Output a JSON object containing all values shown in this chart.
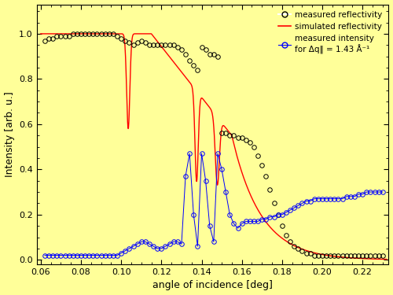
{
  "background_color": "#ffff99",
  "xlabel": "angle of incidence [deg]",
  "ylabel": "Intensity [arb. u.]",
  "xlim": [
    0.058,
    0.233
  ],
  "ylim": [
    -0.02,
    1.13
  ],
  "xticks": [
    0.06,
    0.08,
    0.1,
    0.12,
    0.14,
    0.16,
    0.18,
    0.2,
    0.22
  ],
  "yticks": [
    0.0,
    0.2,
    0.4,
    0.6,
    0.8,
    1.0
  ],
  "legend_labels": [
    "measured reflectivity",
    "simulated reflectivity",
    "measured intensity\nfor Δq‖ = 1.43 Å⁻¹"
  ],
  "meas_refl_color": "black",
  "sim_refl_color": "red",
  "meas_int_color": "blue",
  "x_mr": [
    0.062,
    0.064,
    0.066,
    0.068,
    0.07,
    0.072,
    0.074,
    0.076,
    0.078,
    0.08,
    0.082,
    0.084,
    0.086,
    0.088,
    0.09,
    0.092,
    0.094,
    0.096,
    0.098,
    0.1,
    0.102,
    0.104,
    0.106,
    0.108,
    0.11,
    0.112,
    0.114,
    0.116,
    0.118,
    0.12,
    0.122,
    0.124,
    0.126,
    0.128,
    0.13,
    0.132,
    0.134,
    0.136,
    0.138,
    0.14,
    0.142,
    0.144,
    0.146,
    0.148,
    0.15,
    0.152,
    0.154,
    0.156,
    0.158,
    0.16,
    0.162,
    0.164,
    0.166,
    0.168,
    0.17,
    0.172,
    0.174,
    0.176,
    0.178,
    0.18,
    0.182,
    0.184,
    0.186,
    0.188,
    0.19,
    0.192,
    0.194,
    0.196,
    0.198,
    0.2,
    0.202,
    0.204,
    0.206,
    0.208,
    0.21,
    0.212,
    0.214,
    0.216,
    0.218,
    0.22,
    0.222,
    0.224,
    0.226,
    0.228,
    0.23
  ],
  "y_mr": [
    0.97,
    0.98,
    0.98,
    0.99,
    0.99,
    0.99,
    0.99,
    1.0,
    1.0,
    1.0,
    1.0,
    1.0,
    1.0,
    1.0,
    1.0,
    1.0,
    1.0,
    1.0,
    0.99,
    0.98,
    0.97,
    0.96,
    0.95,
    0.96,
    0.97,
    0.96,
    0.95,
    0.95,
    0.95,
    0.95,
    0.95,
    0.95,
    0.95,
    0.94,
    0.93,
    0.91,
    0.88,
    0.86,
    0.84,
    0.94,
    0.93,
    0.91,
    0.91,
    0.9,
    0.56,
    0.56,
    0.55,
    0.55,
    0.54,
    0.54,
    0.53,
    0.52,
    0.5,
    0.46,
    0.42,
    0.37,
    0.31,
    0.25,
    0.2,
    0.15,
    0.11,
    0.08,
    0.06,
    0.05,
    0.04,
    0.03,
    0.03,
    0.02,
    0.02,
    0.02,
    0.02,
    0.02,
    0.02,
    0.02,
    0.02,
    0.02,
    0.02,
    0.02,
    0.02,
    0.02,
    0.02,
    0.02,
    0.02,
    0.02,
    0.02
  ],
  "x_mi": [
    0.062,
    0.064,
    0.066,
    0.068,
    0.07,
    0.072,
    0.074,
    0.076,
    0.078,
    0.08,
    0.082,
    0.084,
    0.086,
    0.088,
    0.09,
    0.092,
    0.094,
    0.096,
    0.098,
    0.1,
    0.102,
    0.104,
    0.106,
    0.108,
    0.11,
    0.112,
    0.114,
    0.116,
    0.118,
    0.12,
    0.122,
    0.124,
    0.126,
    0.128,
    0.13,
    0.132,
    0.134,
    0.136,
    0.138,
    0.14,
    0.142,
    0.144,
    0.146,
    0.148,
    0.15,
    0.152,
    0.154,
    0.156,
    0.158,
    0.16,
    0.162,
    0.164,
    0.166,
    0.168,
    0.17,
    0.172,
    0.174,
    0.176,
    0.178,
    0.18,
    0.182,
    0.184,
    0.186,
    0.188,
    0.19,
    0.192,
    0.194,
    0.196,
    0.198,
    0.2,
    0.202,
    0.204,
    0.206,
    0.208,
    0.21,
    0.212,
    0.214,
    0.216,
    0.218,
    0.22,
    0.222,
    0.224,
    0.226,
    0.228,
    0.23
  ],
  "y_mi": [
    0.02,
    0.02,
    0.02,
    0.02,
    0.02,
    0.02,
    0.02,
    0.02,
    0.02,
    0.02,
    0.02,
    0.02,
    0.02,
    0.02,
    0.02,
    0.02,
    0.02,
    0.02,
    0.02,
    0.03,
    0.04,
    0.05,
    0.06,
    0.07,
    0.08,
    0.08,
    0.07,
    0.06,
    0.05,
    0.05,
    0.06,
    0.07,
    0.08,
    0.08,
    0.07,
    0.37,
    0.47,
    0.2,
    0.06,
    0.47,
    0.35,
    0.15,
    0.08,
    0.47,
    0.4,
    0.3,
    0.2,
    0.16,
    0.14,
    0.16,
    0.17,
    0.17,
    0.17,
    0.17,
    0.18,
    0.18,
    0.19,
    0.19,
    0.2,
    0.2,
    0.21,
    0.22,
    0.23,
    0.24,
    0.25,
    0.26,
    0.26,
    0.27,
    0.27,
    0.27,
    0.27,
    0.27,
    0.27,
    0.27,
    0.27,
    0.28,
    0.28,
    0.28,
    0.29,
    0.29,
    0.3,
    0.3,
    0.3,
    0.3,
    0.3
  ]
}
